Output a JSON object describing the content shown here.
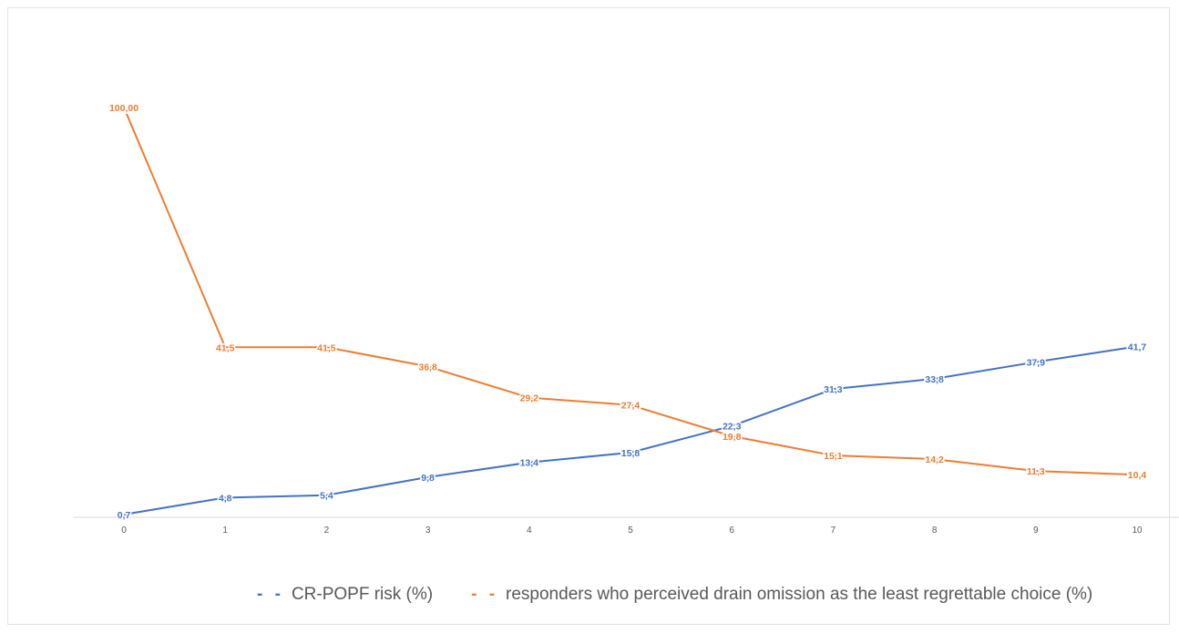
{
  "chart_data": {
    "type": "line",
    "title": "",
    "xlabel": "",
    "ylabel": "",
    "x": [
      "0",
      "1",
      "2",
      "3",
      "4",
      "5",
      "6",
      "7",
      "8",
      "9",
      "10"
    ],
    "ylim": [
      0,
      100
    ],
    "grid": false,
    "legend_position": "bottom",
    "series": [
      {
        "name": "CR-POPF risk (%)",
        "color": "#4472C4",
        "values": [
          0.7,
          4.8,
          5.4,
          9.8,
          13.4,
          15.8,
          22.3,
          31.3,
          33.8,
          37.9,
          41.7
        ],
        "labels": [
          "0,7",
          "4,8",
          "5,4",
          "9,8",
          "13,4",
          "15,8",
          "22,3",
          "31,3",
          "33,8",
          "37,9",
          "41,7"
        ]
      },
      {
        "name": "responders who perceived drain omission as the least regrettable choice (%)",
        "color": "#ED7D31",
        "values": [
          100.0,
          41.5,
          41.5,
          36.8,
          29.2,
          27.4,
          19.8,
          15.1,
          14.2,
          11.3,
          10.4
        ],
        "labels": [
          "100,00",
          "41,5",
          "41,5",
          "36,8",
          "29,2",
          "27,4",
          "19,8",
          "15,1",
          "14,2",
          "11,3",
          "10,4"
        ]
      }
    ]
  },
  "legend": {
    "items": [
      {
        "marker": "- -",
        "label": "CR-POPF risk (%)",
        "color": "#4472C4"
      },
      {
        "marker": "- -",
        "label": "responders who perceived drain omission as the least regrettable choice (%)",
        "color": "#ED7D31"
      }
    ]
  }
}
